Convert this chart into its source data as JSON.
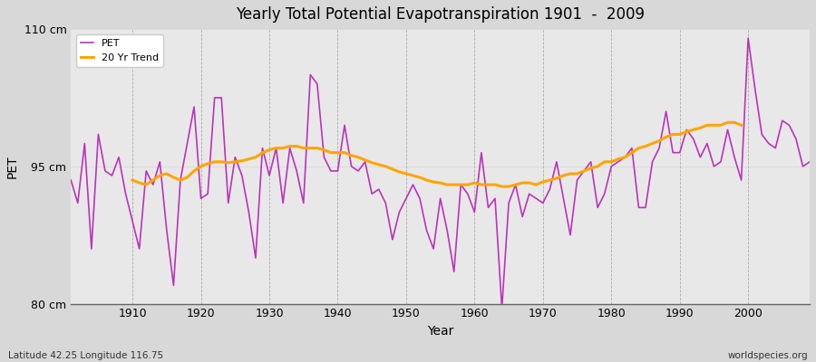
{
  "title": "Yearly Total Potential Evapotranspiration 1901  -  2009",
  "xlabel": "Year",
  "ylabel": "PET",
  "bottom_left": "Latitude 42.25 Longitude 116.75",
  "bottom_right": "worldspecies.org",
  "ylim": [
    80,
    110
  ],
  "yticks": [
    80,
    95,
    110
  ],
  "ytick_labels": [
    "80 cm",
    "95 cm",
    "110 cm"
  ],
  "xlim": [
    1901,
    2009
  ],
  "xticks": [
    1910,
    1920,
    1930,
    1940,
    1950,
    1960,
    1970,
    1980,
    1990,
    2000
  ],
  "pet_color": "#bb33bb",
  "trend_color": "#ffa500",
  "fig_bg_color": "#d8d8d8",
  "plot_bg_color": "#e8e8e8",
  "legend_labels": [
    "PET",
    "20 Yr Trend"
  ],
  "years": [
    1901,
    1902,
    1903,
    1904,
    1905,
    1906,
    1907,
    1908,
    1909,
    1910,
    1911,
    1912,
    1913,
    1914,
    1915,
    1916,
    1917,
    1918,
    1919,
    1920,
    1921,
    1922,
    1923,
    1924,
    1925,
    1926,
    1927,
    1928,
    1929,
    1930,
    1931,
    1932,
    1933,
    1934,
    1935,
    1936,
    1937,
    1938,
    1939,
    1940,
    1941,
    1942,
    1943,
    1944,
    1945,
    1946,
    1947,
    1948,
    1949,
    1950,
    1951,
    1952,
    1953,
    1954,
    1955,
    1956,
    1957,
    1958,
    1959,
    1960,
    1961,
    1962,
    1963,
    1964,
    1965,
    1966,
    1967,
    1968,
    1969,
    1970,
    1971,
    1972,
    1973,
    1974,
    1975,
    1976,
    1977,
    1978,
    1979,
    1980,
    1981,
    1982,
    1983,
    1984,
    1985,
    1986,
    1987,
    1988,
    1989,
    1990,
    1991,
    1992,
    1993,
    1994,
    1995,
    1996,
    1997,
    1998,
    1999,
    2000,
    2001,
    2002,
    2003,
    2004,
    2005,
    2006,
    2007,
    2008,
    2009
  ],
  "pet_values": [
    93.5,
    91.0,
    97.5,
    86.0,
    98.5,
    94.5,
    94.0,
    96.0,
    92.0,
    89.0,
    86.0,
    94.5,
    93.0,
    95.5,
    88.0,
    82.0,
    93.5,
    97.5,
    101.5,
    91.5,
    92.0,
    102.5,
    102.5,
    91.0,
    96.0,
    94.0,
    90.0,
    85.0,
    97.0,
    94.0,
    97.0,
    91.0,
    97.0,
    94.5,
    91.0,
    105.0,
    104.0,
    96.0,
    94.5,
    94.5,
    99.5,
    95.0,
    94.5,
    95.5,
    92.0,
    92.5,
    91.0,
    87.0,
    90.0,
    91.5,
    93.0,
    91.5,
    88.0,
    86.0,
    91.5,
    88.0,
    83.5,
    93.0,
    92.0,
    90.0,
    96.5,
    90.5,
    91.5,
    79.5,
    91.0,
    93.0,
    89.5,
    92.0,
    91.5,
    91.0,
    92.5,
    95.5,
    91.5,
    87.5,
    93.5,
    94.5,
    95.5,
    90.5,
    92.0,
    95.0,
    95.5,
    96.0,
    97.0,
    90.5,
    90.5,
    95.5,
    97.0,
    101.0,
    96.5,
    96.5,
    99.0,
    98.0,
    96.0,
    97.5,
    95.0,
    95.5,
    99.0,
    96.0,
    93.5,
    109.0,
    103.5,
    98.5,
    97.5,
    97.0,
    100.0,
    99.5,
    98.0,
    95.0,
    95.5
  ],
  "trend_values": [
    null,
    null,
    null,
    null,
    null,
    null,
    null,
    null,
    null,
    93.5,
    93.2,
    93.0,
    93.5,
    94.0,
    94.2,
    93.8,
    93.5,
    93.8,
    94.5,
    95.0,
    95.3,
    95.5,
    95.5,
    95.4,
    95.5,
    95.6,
    95.8,
    96.0,
    96.5,
    96.8,
    97.0,
    97.0,
    97.2,
    97.2,
    97.0,
    97.0,
    97.0,
    96.8,
    96.5,
    96.5,
    96.5,
    96.2,
    96.0,
    95.7,
    95.4,
    95.2,
    95.0,
    94.7,
    94.4,
    94.2,
    94.0,
    93.8,
    93.5,
    93.3,
    93.2,
    93.0,
    93.0,
    93.0,
    93.0,
    93.2,
    93.0,
    93.0,
    93.0,
    92.8,
    92.8,
    93.0,
    93.2,
    93.2,
    93.0,
    93.3,
    93.5,
    93.7,
    94.0,
    94.2,
    94.2,
    94.5,
    94.8,
    95.0,
    95.5,
    95.5,
    95.8,
    96.0,
    96.5,
    97.0,
    97.2,
    97.5,
    97.8,
    98.2,
    98.5,
    98.5,
    98.8,
    99.0,
    99.2,
    99.5,
    99.5,
    99.5,
    99.8,
    99.8,
    99.5,
    null,
    null,
    null,
    null,
    null,
    null,
    null,
    null,
    null,
    null
  ]
}
